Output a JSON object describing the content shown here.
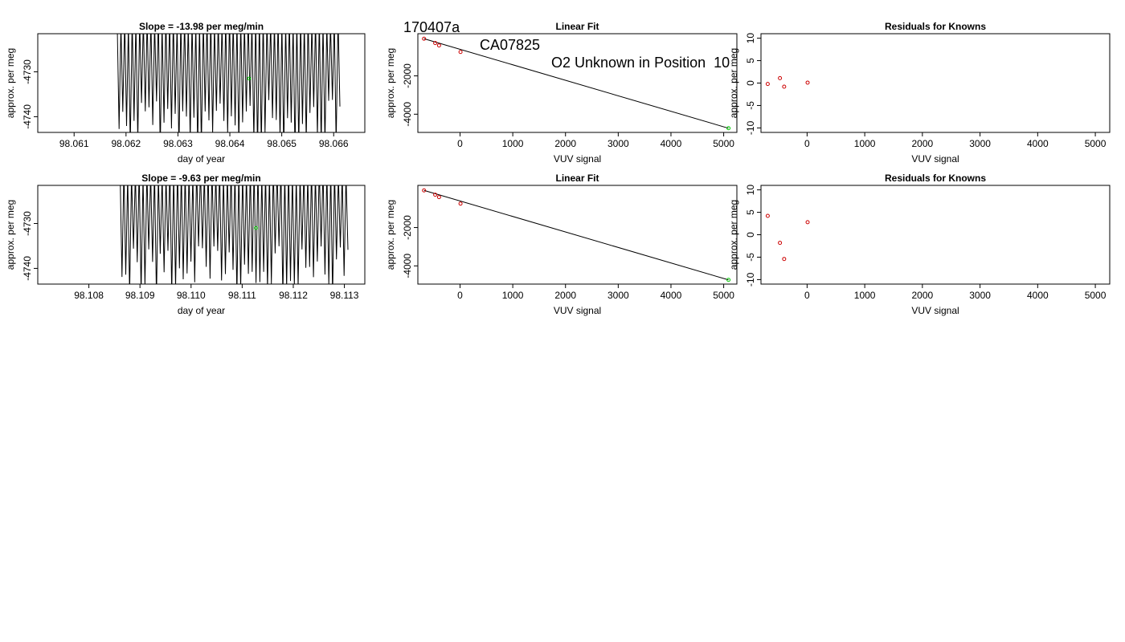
{
  "page": {
    "title_parts": [
      "170407a",
      "CA07825",
      "O2 Unknown in Position  10"
    ]
  },
  "colors": {
    "line": "#000000",
    "known_point": "#cc0000",
    "unknown_point": "#00cc00"
  },
  "chart_data": [
    {
      "id": "p1",
      "type": "line",
      "title": "Slope =  -13.98  per meg/min",
      "xlabel": "day of year",
      "ylabel": "approx. per meg",
      "xlim": [
        98.0603,
        98.0666
      ],
      "ylim": [
        -4743.5,
        -4721.5
      ],
      "xticks": [
        98.061,
        98.062,
        98.063,
        98.064,
        98.065,
        98.066
      ],
      "xtick_labels": [
        "98.061",
        "98.062",
        "98.063",
        "98.064",
        "98.065",
        "98.066"
      ],
      "yticks": [
        -4730,
        -4740
      ],
      "ytick_labels": [
        "-4730",
        "-4740"
      ],
      "x_start": 98.06183,
      "x_end": 98.06612,
      "n_points": 120,
      "seed": 7,
      "y_center": -4732,
      "unknown_point": {
        "x": 98.06437,
        "y": -4731.5
      }
    },
    {
      "id": "p2",
      "type": "scatter",
      "title": "Linear Fit",
      "xlabel": "VUV signal",
      "ylabel": "approx. per meg",
      "xlim": [
        -800,
        5250
      ],
      "ylim": [
        -4950,
        200
      ],
      "xticks": [
        0,
        1000,
        2000,
        3000,
        4000,
        5000
      ],
      "xtick_labels": [
        "0",
        "1000",
        "2000",
        "3000",
        "4000",
        "5000"
      ],
      "yticks": [
        -2000,
        -4000
      ],
      "ytick_labels": [
        "-2000",
        "-4000"
      ],
      "known": {
        "x": [
          -683,
          -471,
          -398,
          9
        ],
        "y": [
          -60,
          -285,
          -410,
          -752
        ]
      },
      "unknown": {
        "x": [
          5091
        ],
        "y": [
          -4732
        ]
      },
      "fit_line": {
        "x": [
          -683,
          5091
        ],
        "y": [
          -60,
          -4732
        ]
      }
    },
    {
      "id": "p3",
      "type": "scatter",
      "title": "Residuals for Knowns",
      "xlabel": "VUV signal",
      "ylabel": "approx. per meg",
      "xlim": [
        -800,
        5250
      ],
      "ylim": [
        -11,
        11
      ],
      "xticks": [
        0,
        1000,
        2000,
        3000,
        4000,
        5000
      ],
      "xtick_labels": [
        "0",
        "1000",
        "2000",
        "3000",
        "4000",
        "5000"
      ],
      "yticks": [
        10,
        5,
        0,
        -5,
        -10
      ],
      "ytick_labels": [
        "10",
        "5",
        "0",
        "-5",
        "-10"
      ],
      "known": {
        "x": [
          -683,
          -471,
          -398,
          9
        ],
        "y": [
          -0.2,
          1.1,
          -0.8,
          0.1
        ]
      }
    },
    {
      "id": "p4",
      "type": "line",
      "title": "Slope =  -9.63  per meg/min",
      "xlabel": "day of year",
      "ylabel": "approx. per meg",
      "xlim": [
        98.107,
        98.1134
      ],
      "ylim": [
        -4743.5,
        -4721.5
      ],
      "xticks": [
        98.108,
        98.109,
        98.11,
        98.111,
        98.112,
        98.113
      ],
      "xtick_labels": [
        "98.108",
        "98.109",
        "98.110",
        "98.111",
        "98.112",
        "98.113"
      ],
      "yticks": [
        -4730,
        -4740
      ],
      "ytick_labels": [
        "-4730",
        "-4740"
      ],
      "x_start": 98.10861,
      "x_end": 98.11307,
      "n_points": 120,
      "seed": 13,
      "y_center": -4731,
      "unknown_point": {
        "x": 98.11127,
        "y": -4731.0
      }
    },
    {
      "id": "p5",
      "type": "scatter",
      "title": "Linear Fit",
      "xlabel": "VUV signal",
      "ylabel": "approx. per meg",
      "xlim": [
        -800,
        5250
      ],
      "ylim": [
        -4950,
        200
      ],
      "xticks": [
        0,
        1000,
        2000,
        3000,
        4000,
        5000
      ],
      "xtick_labels": [
        "0",
        "1000",
        "2000",
        "3000",
        "4000",
        "5000"
      ],
      "yticks": [
        -2000,
        -4000
      ],
      "ytick_labels": [
        "-2000",
        "-4000"
      ],
      "known": {
        "x": [
          -683,
          -471,
          -398,
          9
        ],
        "y": [
          -60,
          -285,
          -410,
          -752
        ]
      },
      "unknown": {
        "x": [
          5091
        ],
        "y": [
          -4731
        ]
      },
      "fit_line": {
        "x": [
          -683,
          5091
        ],
        "y": [
          -60,
          -4731
        ]
      }
    },
    {
      "id": "p6",
      "type": "scatter",
      "title": "Residuals for Knowns",
      "xlabel": "VUV signal",
      "ylabel": "approx. per meg",
      "xlim": [
        -800,
        5250
      ],
      "ylim": [
        -11,
        11
      ],
      "xticks": [
        0,
        1000,
        2000,
        3000,
        4000,
        5000
      ],
      "xtick_labels": [
        "0",
        "1000",
        "2000",
        "3000",
        "4000",
        "5000"
      ],
      "yticks": [
        10,
        5,
        0,
        -5,
        -10
      ],
      "ytick_labels": [
        "10",
        "5",
        "0",
        "-5",
        "-10"
      ],
      "known": {
        "x": [
          -683,
          -471,
          -398,
          9
        ],
        "y": [
          4.2,
          -1.8,
          -5.4,
          2.8
        ]
      }
    }
  ]
}
